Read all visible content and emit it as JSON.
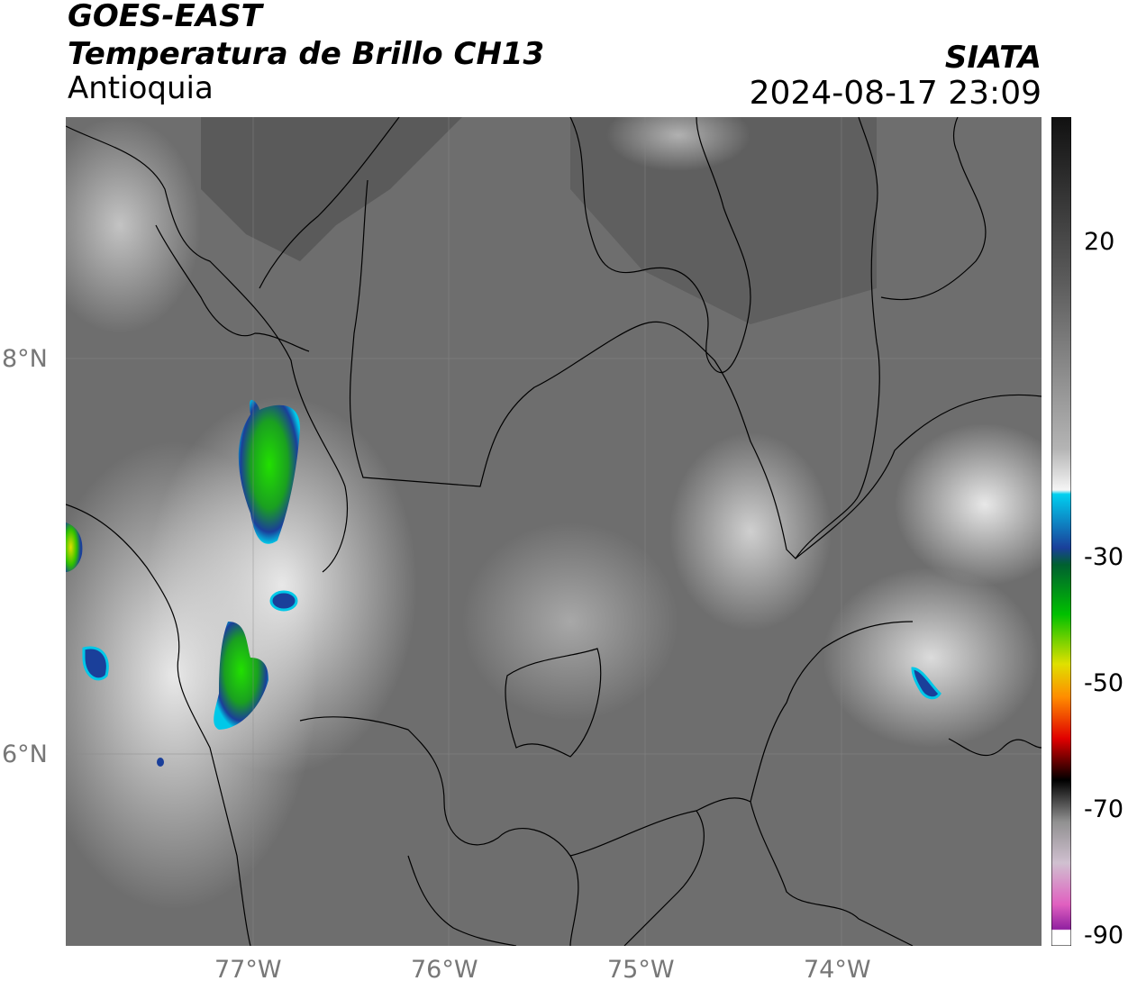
{
  "header": {
    "line1": "GOES-EAST",
    "line2": "Temperatura de Brillo CH13",
    "line3": "Antioquia",
    "org": "SIATA",
    "datetime": "2024-08-17 23:09"
  },
  "map": {
    "lat_labels": [
      "8°N",
      "6°N"
    ],
    "lon_labels": [
      "77°W",
      "76°W",
      "75°W",
      "74°W"
    ],
    "background_gray": "#6c6c6c",
    "cloud_gray": "#cfcfcf",
    "border_color": "#000000"
  },
  "colorbar": {
    "ticks": [
      "20",
      "-30",
      "-50",
      "-70",
      "-90"
    ],
    "colors": {
      "top_dark": "#111111",
      "mid_gray": "#8a8a8a",
      "white": "#f5f5f5",
      "cyan": "#00d0f0",
      "blue": "#1a3f9a",
      "green": "#00c000",
      "yellow": "#e0e000",
      "orange": "#ff8c00",
      "red": "#e00000",
      "black": "#000000",
      "magenta": "#c040c0"
    }
  }
}
